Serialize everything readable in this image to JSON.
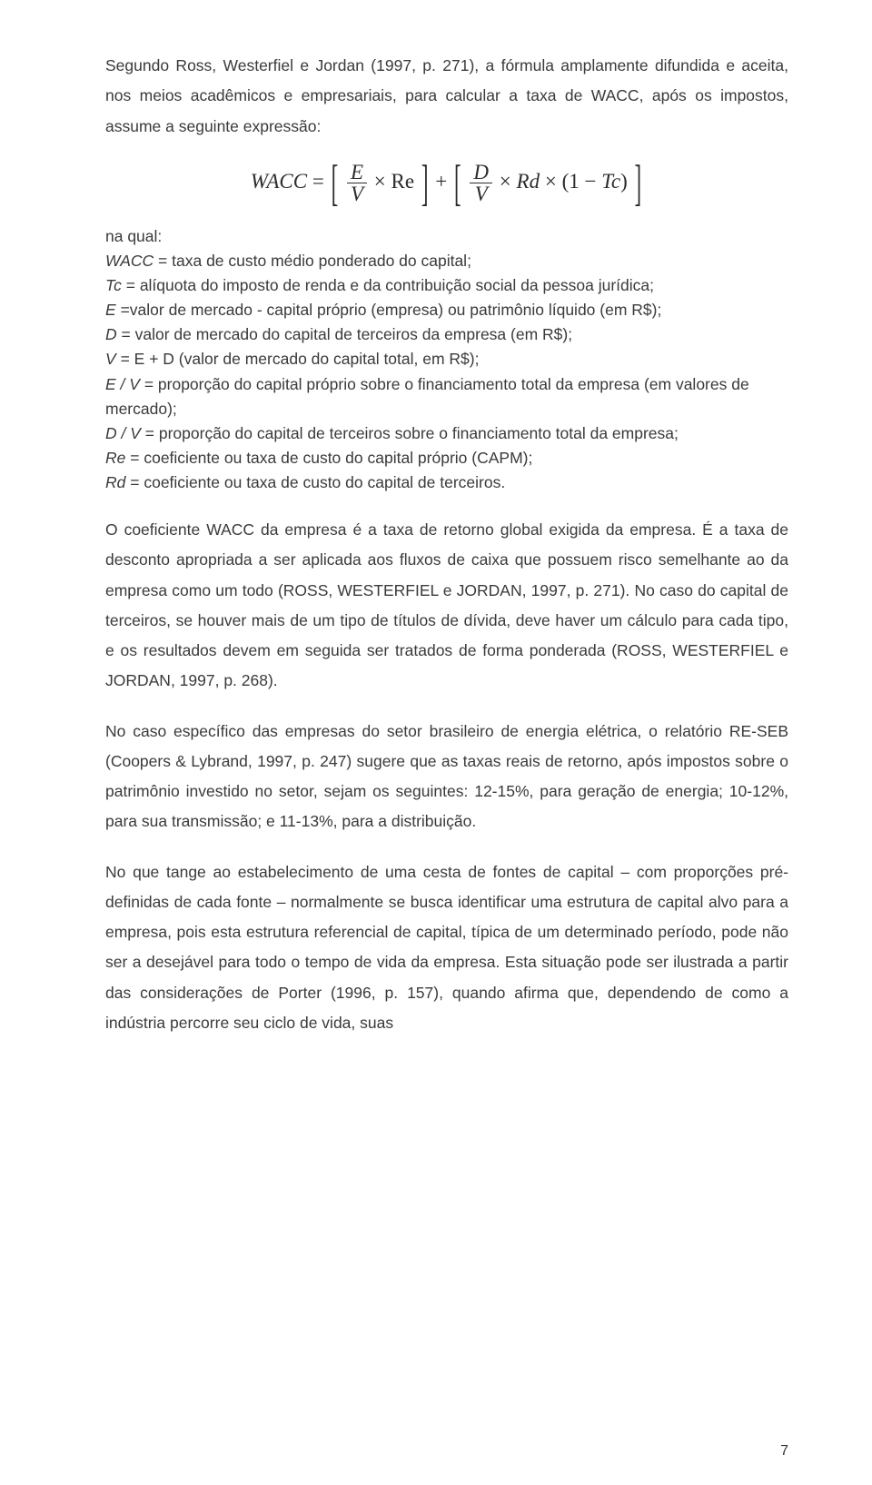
{
  "colors": {
    "text": "#3a3a3a",
    "formula_text": "#2c2c2c",
    "background": "#ffffff",
    "rule": "#2c2c2c"
  },
  "typography": {
    "body_family": "Arial, Helvetica, sans-serif",
    "body_size_pt": 13,
    "formula_family": "Times New Roman, serif",
    "formula_size_pt": 17,
    "line_height_body": 1.9
  },
  "intro": "Segundo Ross, Westerfiel e Jordan (1997, p. 271), a fórmula amplamente difundida e aceita, nos meios acadêmicos e empresariais, para calcular a taxa de WACC, após os impostos, assume a seguinte expressão:",
  "formula": {
    "lhs": "WACC",
    "eq": "=",
    "brL": "[",
    "frac1_num": "E",
    "frac1_den": "V",
    "times": "×",
    "Re": "Re",
    "brR": "]",
    "plus": "+",
    "frac2_num": "D",
    "frac2_den": "V",
    "Rd": "Rd",
    "openP": "(",
    "one": "1",
    "minus": "−",
    "Tc": "Tc",
    "closeP": ")"
  },
  "defs": {
    "lead": "na qual:",
    "items": [
      {
        "label": "WACC",
        "sep": "= ",
        "text": "taxa de custo médio ponderado do capital;"
      },
      {
        "label": "Tc",
        "sep": "= ",
        "text": "alíquota do imposto de renda e da contribuição social da pessoa jurídica;"
      },
      {
        "label": "E",
        "sep": "=",
        "text": "valor de mercado - capital próprio (empresa) ou patrimônio líquido (em R$);"
      },
      {
        "label": "D",
        "sep": "= ",
        "text": "valor de mercado do capital de terceiros da empresa (em R$);"
      },
      {
        "label": "V",
        "sep": "= ",
        "text": "E + D (valor de mercado do capital total, em R$);"
      },
      {
        "label": "E / V",
        "sep": "= ",
        "text": "proporção do capital próprio sobre o financiamento total da empresa (em valores de mercado);"
      },
      {
        "label": "D / V",
        "sep": "= ",
        "text": "proporção do capital de terceiros sobre o financiamento total da empresa;"
      },
      {
        "label": "Re",
        "sep": "= ",
        "text": "coeficiente ou taxa de custo do capital próprio (CAPM);"
      },
      {
        "label": "Rd",
        "sep": "= ",
        "text": "coeficiente ou taxa de custo do capital de terceiros."
      }
    ]
  },
  "p1": "O coeficiente WACC da empresa é a taxa de retorno global exigida da empresa. É a taxa de desconto apropriada a ser aplicada aos fluxos de caixa que possuem risco semelhante ao da empresa como um todo (ROSS, WESTERFIEL e JORDAN, 1997, p. 271). No caso do capital de terceiros, se houver mais de um tipo de títulos de dívida, deve haver um cálculo para cada tipo, e os resultados devem em seguida ser tratados de forma ponderada (ROSS, WESTERFIEL e JORDAN, 1997, p. 268).",
  "p2": "No caso específico das empresas do setor brasileiro de energia elétrica, o relatório RE-SEB (Coopers & Lybrand, 1997, p. 247) sugere que as taxas reais de retorno, após impostos sobre o patrimônio investido no setor, sejam os seguintes: 12-15%, para geração de energia; 10-12%, para sua transmissão; e 11-13%, para a distribuição.",
  "p3": "No que tange ao estabelecimento de uma cesta de fontes de capital – com proporções pré-definidas de cada fonte – normalmente se busca identificar uma estrutura de capital alvo para a empresa, pois esta estrutura referencial de capital, típica de um determinado período, pode não ser a desejável para todo o tempo de vida da empresa. Esta situação pode ser ilustrada a partir das considerações de Porter (1996, p. 157), quando afirma que, dependendo de como a indústria percorre seu ciclo de vida, suas",
  "page_number": "7"
}
